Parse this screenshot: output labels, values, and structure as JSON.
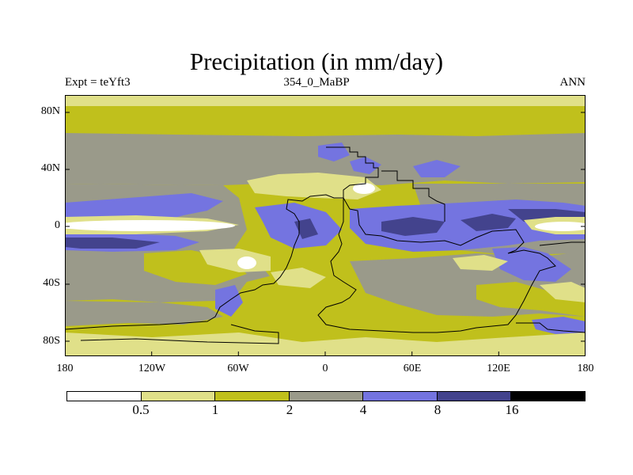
{
  "title": "Precipitation (in mm/day)",
  "subtitle_left": "Expt = teYft3",
  "subtitle_center": "354_0_MaBP",
  "subtitle_right": "ANN",
  "y_axis_labels": [
    "80N",
    "40N",
    "0",
    "40S",
    "80S"
  ],
  "x_axis_labels": [
    "180",
    "120W",
    "60W",
    "0",
    "60E",
    "120E",
    "180"
  ],
  "colorbar": {
    "labels": [
      "0.5",
      "1",
      "2",
      "4",
      "8",
      "16"
    ],
    "colors": [
      "#ffffff",
      "#e0e089",
      "#c0c01c",
      "#9a9a8a",
      "#7474e0",
      "#43438d",
      "#000000"
    ]
  },
  "colors": {
    "white": "#ffffff",
    "pale_yellow": "#e0e089",
    "olive": "#c0c01c",
    "gray": "#9a9a8a",
    "blue": "#7474e0",
    "dark_blue": "#43438d"
  }
}
